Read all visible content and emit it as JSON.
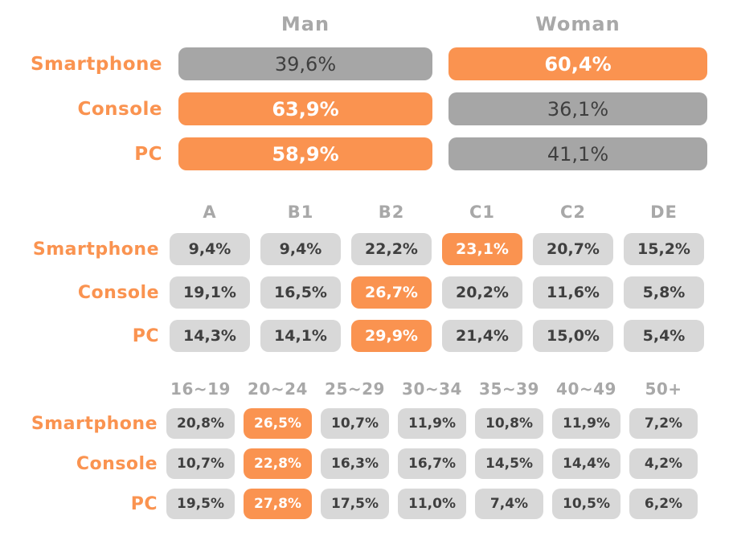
{
  "colors": {
    "accent_orange": "#FA9350",
    "bar_gray": "#A6A6A6",
    "cell_gray": "#D8D8D8",
    "header_text_gray": "#A8A8A8",
    "value_text_dark": "#3F3F3F",
    "value_text_light": "#FFFFFF"
  },
  "gender_section": {
    "columns": [
      "Man",
      "Woman"
    ],
    "rows": [
      {
        "label": "Smartphone",
        "values": [
          "39,6%",
          "60,4%"
        ]
      },
      {
        "label": "Console",
        "values": [
          "63,9%",
          "36,1%"
        ]
      },
      {
        "label": "PC",
        "values": [
          "58,9%",
          "41,1%"
        ]
      }
    ]
  },
  "class_section": {
    "columns": [
      "A",
      "B1",
      "B2",
      "C1",
      "C2",
      "DE"
    ],
    "rows": [
      {
        "label": "Smartphone",
        "values": [
          "9,4%",
          "9,4%",
          "22,2%",
          "23,1%",
          "20,7%",
          "15,2%"
        ],
        "highlight_index": 3
      },
      {
        "label": "Console",
        "values": [
          "19,1%",
          "16,5%",
          "26,7%",
          "20,2%",
          "11,6%",
          "5,8%"
        ],
        "highlight_index": 2
      },
      {
        "label": "PC",
        "values": [
          "14,3%",
          "14,1%",
          "29,9%",
          "21,4%",
          "15,0%",
          "5,4%"
        ],
        "highlight_index": 2
      }
    ]
  },
  "age_section": {
    "columns": [
      "16~19",
      "20~24",
      "25~29",
      "30~34",
      "35~39",
      "40~49",
      "50+"
    ],
    "rows": [
      {
        "label": "Smartphone",
        "values": [
          "20,8%",
          "26,5%",
          "10,7%",
          "11,9%",
          "10,8%",
          "11,9%",
          "7,2%"
        ],
        "highlight_index": 1
      },
      {
        "label": "Console",
        "values": [
          "10,7%",
          "22,8%",
          "16,3%",
          "16,7%",
          "14,5%",
          "14,4%",
          "4,2%"
        ],
        "highlight_index": 1
      },
      {
        "label": "PC",
        "values": [
          "19,5%",
          "27,8%",
          "17,5%",
          "11,0%",
          "7,4%",
          "10,5%",
          "6,2%"
        ],
        "highlight_index": 1
      }
    ]
  },
  "chart_data": [
    {
      "type": "bar",
      "title": "",
      "categories": [
        "Smartphone",
        "Console",
        "PC"
      ],
      "series": [
        {
          "name": "Man",
          "values": [
            39.6,
            63.9,
            58.9
          ]
        },
        {
          "name": "Woman",
          "values": [
            60.4,
            36.1,
            41.1
          ]
        }
      ],
      "unit": "%",
      "highlighted": {
        "Smartphone": "Woman",
        "Console": "Man",
        "PC": "Man"
      }
    },
    {
      "type": "table",
      "title": "",
      "columns": [
        "A",
        "B1",
        "B2",
        "C1",
        "C2",
        "DE"
      ],
      "rows": [
        "Smartphone",
        "Console",
        "PC"
      ],
      "values": [
        [
          9.4,
          9.4,
          22.2,
          23.1,
          20.7,
          15.2
        ],
        [
          19.1,
          16.5,
          26.7,
          20.2,
          11.6,
          5.8
        ],
        [
          14.3,
          14.1,
          29.9,
          21.4,
          15.0,
          5.4
        ]
      ],
      "unit": "%",
      "highlighted_cells": [
        [
          "Smartphone",
          "C1"
        ],
        [
          "Console",
          "B2"
        ],
        [
          "PC",
          "B2"
        ]
      ]
    },
    {
      "type": "table",
      "title": "",
      "columns": [
        "16~19",
        "20~24",
        "25~29",
        "30~34",
        "35~39",
        "40~49",
        "50+"
      ],
      "rows": [
        "Smartphone",
        "Console",
        "PC"
      ],
      "values": [
        [
          20.8,
          26.5,
          10.7,
          11.9,
          10.8,
          11.9,
          7.2
        ],
        [
          10.7,
          22.8,
          16.3,
          16.7,
          14.5,
          14.4,
          4.2
        ],
        [
          19.5,
          27.8,
          17.5,
          11.0,
          7.4,
          10.5,
          6.2
        ]
      ],
      "unit": "%",
      "highlighted_cells": [
        [
          "Smartphone",
          "20~24"
        ],
        [
          "Console",
          "20~24"
        ],
        [
          "PC",
          "20~24"
        ]
      ]
    }
  ]
}
